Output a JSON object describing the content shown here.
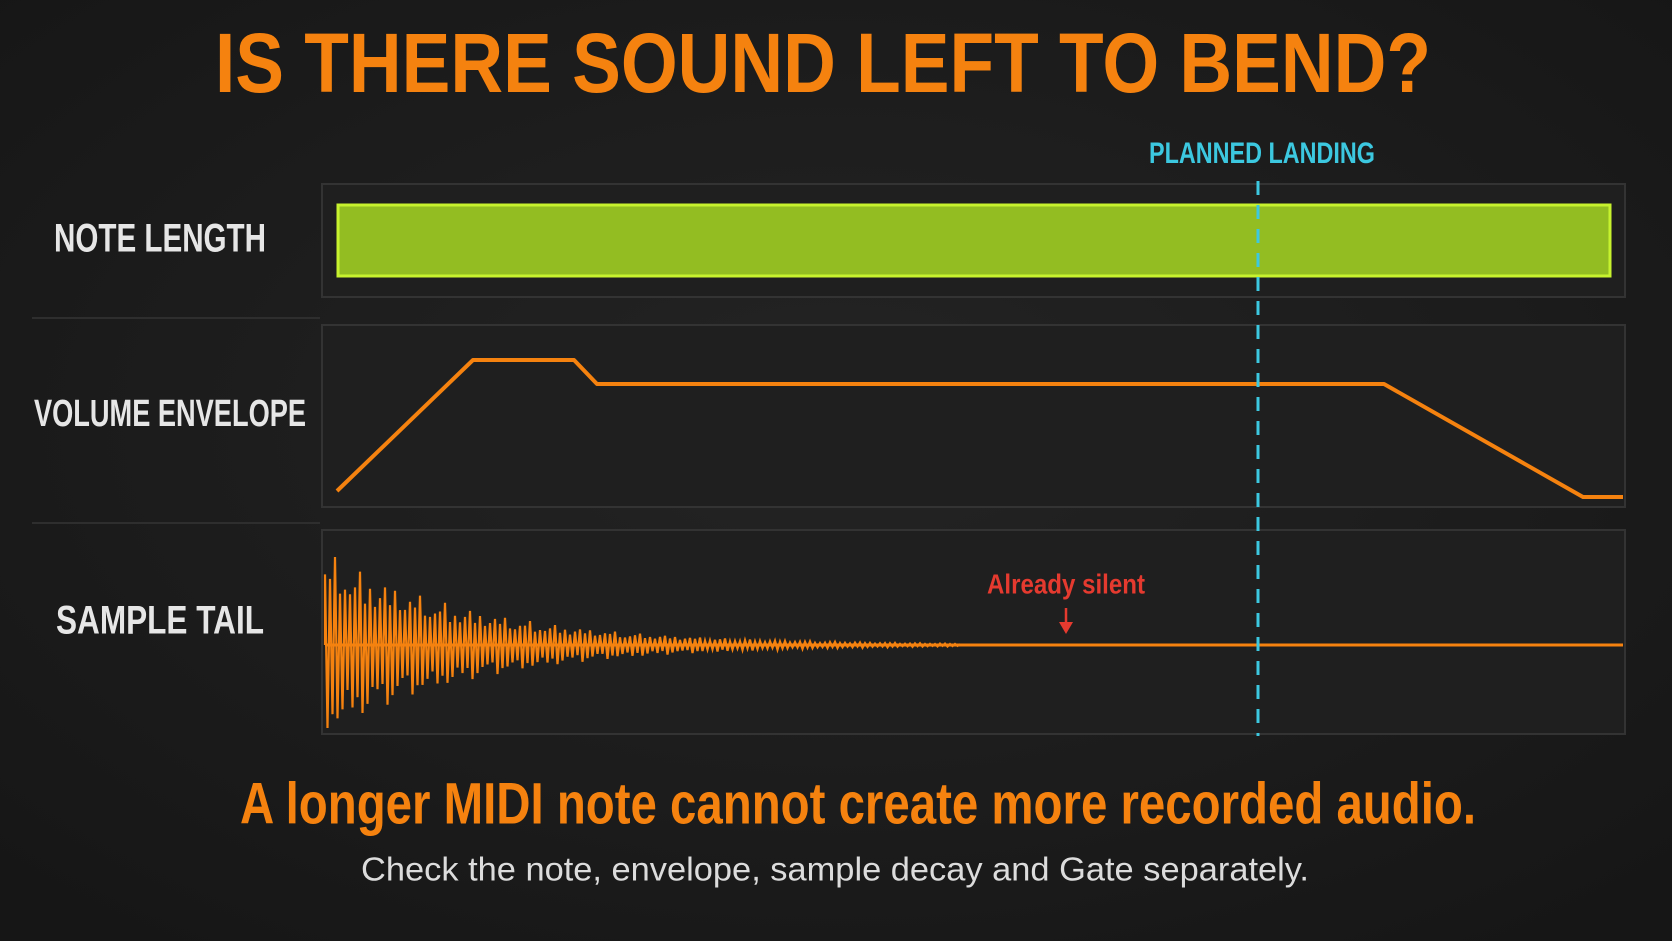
{
  "header": {
    "title": "IS THERE SOUND LEFT TO BEND?"
  },
  "rows": [
    {
      "label": "NOTE LENGTH"
    },
    {
      "label": "VOLUME ENVELOPE"
    },
    {
      "label": "SAMPLE TAIL"
    }
  ],
  "marker": {
    "label": "PLANNED LANDING"
  },
  "annotation": {
    "text": "Already silent"
  },
  "footer": {
    "headline": "A longer MIDI note cannot create more recorded audio.",
    "subtext": "Check the note, envelope, sample decay and Gate separately."
  }
}
